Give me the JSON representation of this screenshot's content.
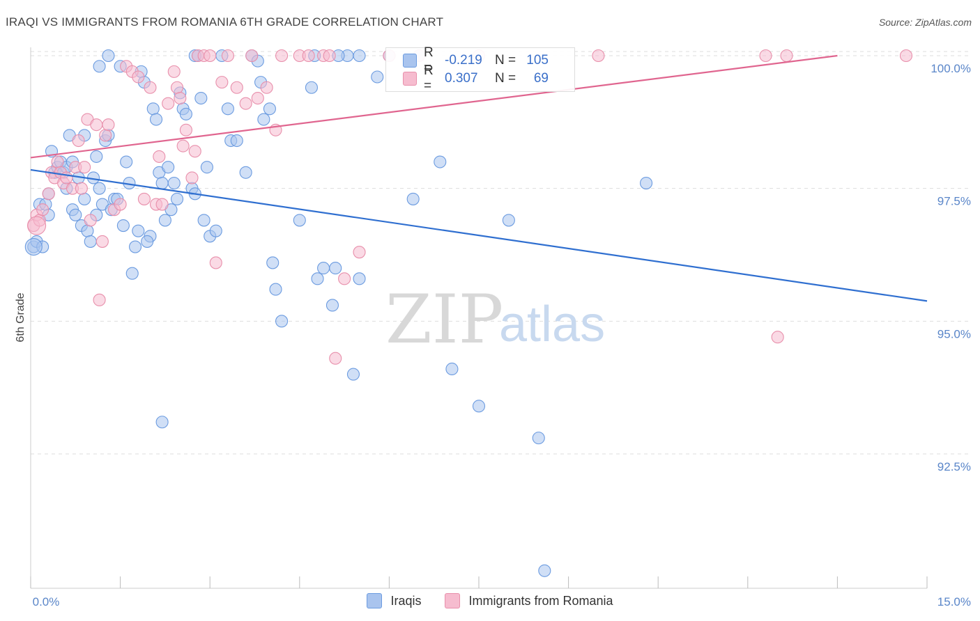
{
  "header": {
    "title": "IRAQI VS IMMIGRANTS FROM ROMANIA 6TH GRADE CORRELATION CHART",
    "source": "Source: ZipAtlas.com"
  },
  "legend": {
    "rows": [
      {
        "r_label": "R =",
        "r_value": "-0.219",
        "n_label": "N =",
        "n_value": "105"
      },
      {
        "r_label": "R =",
        "r_value": "0.307",
        "n_label": "N =",
        "n_value": "69"
      }
    ]
  },
  "watermark": {
    "zip": "ZIP",
    "atlas": "atlas"
  },
  "colors": {
    "iraqi_fill": "#a9c4ee",
    "iraqi_stroke": "#6b9be0",
    "iraqi_line": "#2f6fd0",
    "romania_fill": "#f6bccf",
    "romania_stroke": "#e88fab",
    "romania_line": "#e0658f",
    "grid": "#dddddd",
    "tick_label": "#5a86c9"
  },
  "chart_data": {
    "type": "scatter",
    "title": "IRAQI VS IMMIGRANTS FROM ROMANIA 6TH GRADE CORRELATION CHART",
    "xlabel": "",
    "ylabel": "6th Grade",
    "xlim": [
      0,
      15
    ],
    "ylim": [
      90.3,
      100.4
    ],
    "x_tick_labels": [
      "0.0%",
      "15.0%"
    ],
    "y_ticks": [
      92.5,
      95.0,
      97.5,
      100.0
    ],
    "y_tick_labels": [
      "92.5%",
      "95.0%",
      "97.5%",
      "100.0%"
    ],
    "grid": true,
    "legend_position": "bottom",
    "series": [
      {
        "name": "Iraqis",
        "r": -0.219,
        "n": 105,
        "trend": {
          "x": [
            0,
            15
          ],
          "y": [
            97.85,
            95.38
          ]
        },
        "points": [
          [
            0.05,
            96.4
          ],
          [
            0.1,
            96.5
          ],
          [
            0.15,
            97.2
          ],
          [
            0.2,
            96.4
          ],
          [
            0.25,
            97.2
          ],
          [
            0.3,
            97.4
          ],
          [
            0.35,
            98.2
          ],
          [
            0.4,
            97.8
          ],
          [
            0.45,
            97.9
          ],
          [
            0.5,
            98.0
          ],
          [
            0.55,
            97.8
          ],
          [
            0.6,
            97.5
          ],
          [
            0.65,
            98.5
          ],
          [
            0.7,
            97.1
          ],
          [
            0.75,
            97.0
          ],
          [
            0.8,
            97.7
          ],
          [
            0.85,
            96.8
          ],
          [
            0.9,
            97.3
          ],
          [
            0.95,
            96.7
          ],
          [
            1.0,
            96.5
          ],
          [
            1.05,
            97.7
          ],
          [
            1.1,
            98.1
          ],
          [
            1.15,
            97.5
          ],
          [
            1.2,
            97.2
          ],
          [
            1.25,
            98.4
          ],
          [
            1.3,
            98.5
          ],
          [
            1.35,
            97.1
          ],
          [
            1.4,
            97.3
          ],
          [
            1.5,
            99.8
          ],
          [
            1.55,
            96.8
          ],
          [
            1.6,
            98.0
          ],
          [
            1.65,
            97.6
          ],
          [
            1.7,
            95.9
          ],
          [
            1.75,
            96.4
          ],
          [
            1.8,
            96.7
          ],
          [
            1.85,
            99.7
          ],
          [
            1.9,
            99.5
          ],
          [
            2.0,
            96.6
          ],
          [
            2.05,
            99.0
          ],
          [
            2.1,
            98.8
          ],
          [
            2.15,
            97.8
          ],
          [
            2.2,
            97.6
          ],
          [
            2.25,
            96.9
          ],
          [
            2.3,
            97.9
          ],
          [
            2.35,
            97.1
          ],
          [
            2.4,
            97.6
          ],
          [
            2.5,
            99.3
          ],
          [
            2.55,
            99.0
          ],
          [
            2.6,
            98.9
          ],
          [
            2.7,
            97.5
          ],
          [
            2.75,
            97.4
          ],
          [
            2.8,
            100.0
          ],
          [
            2.85,
            99.2
          ],
          [
            2.9,
            96.9
          ],
          [
            2.95,
            97.9
          ],
          [
            3.0,
            96.6
          ],
          [
            3.1,
            96.7
          ],
          [
            3.2,
            100.0
          ],
          [
            3.3,
            99.0
          ],
          [
            3.35,
            98.4
          ],
          [
            3.6,
            97.8
          ],
          [
            3.7,
            100.0
          ],
          [
            3.8,
            99.9
          ],
          [
            3.85,
            99.5
          ],
          [
            3.9,
            98.8
          ],
          [
            4.0,
            99.0
          ],
          [
            4.05,
            96.1
          ],
          [
            4.1,
            95.6
          ],
          [
            4.2,
            95.0
          ],
          [
            4.5,
            96.9
          ],
          [
            4.7,
            99.4
          ],
          [
            4.8,
            95.8
          ],
          [
            4.9,
            96.0
          ],
          [
            5.05,
            95.3
          ],
          [
            5.1,
            96.0
          ],
          [
            5.3,
            100.0
          ],
          [
            5.4,
            94.0
          ],
          [
            5.5,
            95.8
          ],
          [
            5.8,
            99.6
          ],
          [
            6.0,
            100.0
          ],
          [
            6.4,
            97.3
          ],
          [
            6.5,
            100.0
          ],
          [
            6.85,
            98.0
          ],
          [
            7.05,
            94.1
          ],
          [
            7.5,
            93.4
          ],
          [
            8.0,
            96.9
          ],
          [
            8.5,
            92.8
          ],
          [
            8.6,
            90.3
          ],
          [
            10.3,
            97.6
          ],
          [
            1.3,
            100.0
          ],
          [
            2.2,
            93.1
          ],
          [
            0.6,
            97.9
          ],
          [
            1.1,
            97.0
          ],
          [
            0.7,
            98.0
          ],
          [
            0.3,
            97.0
          ],
          [
            1.45,
            97.3
          ],
          [
            2.45,
            97.3
          ],
          [
            1.95,
            96.5
          ],
          [
            0.9,
            98.5
          ],
          [
            1.15,
            99.8
          ],
          [
            2.75,
            100.0
          ],
          [
            4.75,
            100.0
          ],
          [
            5.15,
            100.0
          ],
          [
            5.5,
            100.0
          ],
          [
            3.45,
            98.4
          ]
        ]
      },
      {
        "name": "Immigrants from Romania",
        "r": 0.307,
        "n": 69,
        "trend": {
          "x": [
            0,
            13.5
          ],
          "y": [
            98.08,
            100.0
          ]
        },
        "points": [
          [
            0.05,
            96.8
          ],
          [
            0.1,
            97.0
          ],
          [
            0.15,
            96.9
          ],
          [
            0.2,
            97.1
          ],
          [
            0.3,
            97.4
          ],
          [
            0.35,
            97.8
          ],
          [
            0.4,
            97.7
          ],
          [
            0.45,
            98.0
          ],
          [
            0.5,
            97.8
          ],
          [
            0.55,
            97.6
          ],
          [
            0.6,
            97.7
          ],
          [
            0.7,
            97.5
          ],
          [
            0.75,
            97.9
          ],
          [
            0.8,
            98.4
          ],
          [
            0.85,
            97.5
          ],
          [
            0.9,
            97.9
          ],
          [
            0.95,
            98.8
          ],
          [
            1.0,
            96.9
          ],
          [
            1.1,
            98.7
          ],
          [
            1.15,
            95.4
          ],
          [
            1.2,
            96.5
          ],
          [
            1.25,
            98.5
          ],
          [
            1.3,
            98.7
          ],
          [
            1.4,
            97.1
          ],
          [
            1.5,
            97.2
          ],
          [
            1.6,
            99.8
          ],
          [
            1.7,
            99.7
          ],
          [
            1.8,
            99.6
          ],
          [
            1.9,
            97.3
          ],
          [
            2.0,
            99.4
          ],
          [
            2.1,
            97.2
          ],
          [
            2.15,
            98.1
          ],
          [
            2.2,
            97.2
          ],
          [
            2.3,
            99.1
          ],
          [
            2.4,
            99.7
          ],
          [
            2.45,
            99.4
          ],
          [
            2.5,
            99.2
          ],
          [
            2.55,
            98.3
          ],
          [
            2.6,
            98.6
          ],
          [
            2.7,
            97.7
          ],
          [
            2.75,
            98.2
          ],
          [
            2.8,
            100.0
          ],
          [
            2.9,
            100.0
          ],
          [
            3.0,
            100.0
          ],
          [
            3.1,
            96.1
          ],
          [
            3.2,
            99.5
          ],
          [
            3.3,
            100.0
          ],
          [
            3.45,
            99.4
          ],
          [
            3.6,
            99.1
          ],
          [
            3.7,
            100.0
          ],
          [
            3.8,
            99.2
          ],
          [
            3.95,
            99.4
          ],
          [
            4.1,
            98.6
          ],
          [
            4.2,
            100.0
          ],
          [
            4.5,
            100.0
          ],
          [
            4.65,
            100.0
          ],
          [
            4.9,
            100.0
          ],
          [
            5.0,
            100.0
          ],
          [
            5.25,
            95.8
          ],
          [
            5.5,
            96.3
          ],
          [
            6.0,
            100.0
          ],
          [
            6.5,
            100.0
          ],
          [
            7.5,
            100.0
          ],
          [
            9.5,
            100.0
          ],
          [
            12.3,
            100.0
          ],
          [
            12.65,
            100.0
          ],
          [
            12.5,
            94.7
          ],
          [
            14.65,
            100.0
          ],
          [
            5.1,
            94.3
          ]
        ]
      }
    ]
  }
}
